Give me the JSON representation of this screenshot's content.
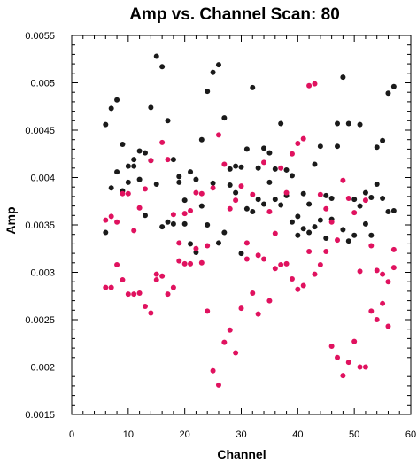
{
  "chart_data": {
    "type": "scatter",
    "title": "Amp vs. Channel Scan: 80",
    "xlabel": "Channel",
    "ylabel": "Amp",
    "xlim": [
      0,
      60
    ],
    "ylim": [
      0.0015,
      0.0055
    ],
    "x_ticks": [
      "0",
      "10",
      "20",
      "30",
      "40",
      "50",
      "60"
    ],
    "y_ticks": [
      "0.0015",
      "0.002",
      "0.0025",
      "0.003",
      "0.0035",
      "0.004",
      "0.0045",
      "0.005",
      "0.0055"
    ],
    "grid": false,
    "series": [
      {
        "color": "#1a1a1a",
        "points": [
          [
            6,
            0.00456
          ],
          [
            6,
            0.00342
          ],
          [
            7,
            0.00473
          ],
          [
            7,
            0.00389
          ],
          [
            8,
            0.00482
          ],
          [
            8,
            0.00406
          ],
          [
            9,
            0.00435
          ],
          [
            9,
            0.00386
          ],
          [
            10,
            0.00412
          ],
          [
            10,
            0.00395
          ],
          [
            11,
            0.00419
          ],
          [
            11,
            0.00412
          ],
          [
            12,
            0.00428
          ],
          [
            12,
            0.00398
          ],
          [
            13,
            0.00426
          ],
          [
            13,
            0.0036
          ],
          [
            14,
            0.00474
          ],
          [
            14,
            0.00418
          ],
          [
            15,
            0.00528
          ],
          [
            15,
            0.00393
          ],
          [
            16,
            0.00517
          ],
          [
            16,
            0.00348
          ],
          [
            17,
            0.0046
          ],
          [
            17,
            0.00353
          ],
          [
            18,
            0.00419
          ],
          [
            18,
            0.00351
          ],
          [
            19,
            0.00401
          ],
          [
            19,
            0.00395
          ],
          [
            20,
            0.00376
          ],
          [
            20,
            0.00351
          ],
          [
            21,
            0.00406
          ],
          [
            21,
            0.0033
          ],
          [
            22,
            0.00398
          ],
          [
            22,
            0.00321
          ],
          [
            23,
            0.0044
          ],
          [
            23,
            0.0037
          ],
          [
            24,
            0.00491
          ],
          [
            24,
            0.0035
          ],
          [
            25,
            0.00511
          ],
          [
            25,
            0.00394
          ],
          [
            26,
            0.00519
          ],
          [
            26,
            0.00331
          ],
          [
            27,
            0.00463
          ],
          [
            27,
            0.00342
          ],
          [
            28,
            0.00409
          ],
          [
            28,
            0.00392
          ],
          [
            29,
            0.00412
          ],
          [
            29,
            0.00384
          ],
          [
            30,
            0.00411
          ],
          [
            30,
            0.0032
          ],
          [
            31,
            0.0043
          ],
          [
            31,
            0.00367
          ],
          [
            32,
            0.00495
          ],
          [
            32,
            0.00364
          ],
          [
            33,
            0.0041
          ],
          [
            33,
            0.00377
          ],
          [
            34,
            0.00431
          ],
          [
            34,
            0.00372
          ],
          [
            35,
            0.00426
          ],
          [
            35,
            0.00395
          ],
          [
            36,
            0.00409
          ],
          [
            36,
            0.00377
          ],
          [
            37,
            0.00457
          ],
          [
            37,
            0.00371
          ],
          [
            38,
            0.00408
          ],
          [
            38,
            0.00381
          ],
          [
            39,
            0.00402
          ],
          [
            39,
            0.00353
          ],
          [
            40,
            0.00359
          ],
          [
            40,
            0.00339
          ],
          [
            41,
            0.00383
          ],
          [
            41,
            0.00346
          ],
          [
            42,
            0.00372
          ],
          [
            42,
            0.00342
          ],
          [
            43,
            0.00414
          ],
          [
            43,
            0.00348
          ],
          [
            44,
            0.00433
          ],
          [
            44,
            0.00355
          ],
          [
            45,
            0.00381
          ],
          [
            45,
            0.00336
          ],
          [
            46,
            0.00378
          ],
          [
            46,
            0.00356
          ],
          [
            47,
            0.00457
          ],
          [
            47,
            0.00433
          ],
          [
            48,
            0.00506
          ],
          [
            48,
            0.00345
          ],
          [
            49,
            0.00457
          ],
          [
            49,
            0.00333
          ],
          [
            50,
            0.00377
          ],
          [
            50,
            0.00339
          ],
          [
            51,
            0.00456
          ],
          [
            51,
            0.0037
          ],
          [
            52,
            0.00384
          ],
          [
            52,
            0.00351
          ],
          [
            53,
            0.00379
          ],
          [
            53,
            0.00339
          ],
          [
            54,
            0.00432
          ],
          [
            54,
            0.00393
          ],
          [
            55,
            0.00439
          ],
          [
            55,
            0.00378
          ],
          [
            56,
            0.00489
          ],
          [
            56,
            0.00364
          ],
          [
            57,
            0.00496
          ],
          [
            57,
            0.00365
          ]
        ]
      },
      {
        "color": "#e0125f",
        "points": [
          [
            6,
            0.00355
          ],
          [
            6,
            0.00284
          ],
          [
            7,
            0.00359
          ],
          [
            7,
            0.00284
          ],
          [
            8,
            0.00353
          ],
          [
            8,
            0.00308
          ],
          [
            9,
            0.00383
          ],
          [
            9,
            0.00292
          ],
          [
            10,
            0.00383
          ],
          [
            10,
            0.00277
          ],
          [
            11,
            0.00344
          ],
          [
            11,
            0.00277
          ],
          [
            12,
            0.00368
          ],
          [
            12,
            0.00278
          ],
          [
            13,
            0.00388
          ],
          [
            13,
            0.00264
          ],
          [
            14,
            0.00418
          ],
          [
            14,
            0.00257
          ],
          [
            15,
            0.00298
          ],
          [
            15,
            0.00292
          ],
          [
            16,
            0.00437
          ],
          [
            16,
            0.00296
          ],
          [
            17,
            0.00419
          ],
          [
            17,
            0.00277
          ],
          [
            18,
            0.00361
          ],
          [
            18,
            0.00284
          ],
          [
            19,
            0.00331
          ],
          [
            19,
            0.00312
          ],
          [
            20,
            0.00362
          ],
          [
            20,
            0.00309
          ],
          [
            21,
            0.00365
          ],
          [
            21,
            0.00309
          ],
          [
            22,
            0.00384
          ],
          [
            22,
            0.00325
          ],
          [
            23,
            0.00383
          ],
          [
            23,
            0.0031
          ],
          [
            24,
            0.00259
          ],
          [
            24,
            0.00328
          ],
          [
            25,
            0.00196
          ],
          [
            25,
            0.00389
          ],
          [
            26,
            0.00445
          ],
          [
            26,
            0.00181
          ],
          [
            27,
            0.00414
          ],
          [
            27,
            0.00226
          ],
          [
            28,
            0.00367
          ],
          [
            28,
            0.00239
          ],
          [
            29,
            0.00376
          ],
          [
            29,
            0.00215
          ],
          [
            30,
            0.00391
          ],
          [
            30,
            0.00262
          ],
          [
            31,
            0.00331
          ],
          [
            31,
            0.00314
          ],
          [
            32,
            0.00382
          ],
          [
            32,
            0.00278
          ],
          [
            33,
            0.00318
          ],
          [
            33,
            0.00256
          ],
          [
            34,
            0.00416
          ],
          [
            34,
            0.00314
          ],
          [
            35,
            0.00364
          ],
          [
            35,
            0.0027
          ],
          [
            36,
            0.00341
          ],
          [
            36,
            0.00304
          ],
          [
            37,
            0.0041
          ],
          [
            37,
            0.00308
          ],
          [
            38,
            0.00309
          ],
          [
            38,
            0.00384
          ],
          [
            39,
            0.00425
          ],
          [
            39,
            0.00293
          ],
          [
            40,
            0.00436
          ],
          [
            40,
            0.00282
          ],
          [
            41,
            0.00441
          ],
          [
            41,
            0.00286
          ],
          [
            42,
            0.00497
          ],
          [
            42,
            0.00322
          ],
          [
            43,
            0.00499
          ],
          [
            43,
            0.00298
          ],
          [
            44,
            0.00382
          ],
          [
            44,
            0.00308
          ],
          [
            45,
            0.00367
          ],
          [
            45,
            0.00322
          ],
          [
            46,
            0.00353
          ],
          [
            46,
            0.00222
          ],
          [
            47,
            0.00334
          ],
          [
            47,
            0.0021
          ],
          [
            48,
            0.00397
          ],
          [
            48,
            0.00191
          ],
          [
            49,
            0.00378
          ],
          [
            49,
            0.00205
          ],
          [
            50,
            0.00363
          ],
          [
            50,
            0.00227
          ],
          [
            51,
            0.00301
          ],
          [
            51,
            0.002
          ],
          [
            52,
            0.00376
          ],
          [
            52,
            0.002
          ],
          [
            53,
            0.00328
          ],
          [
            53,
            0.00259
          ],
          [
            54,
            0.00302
          ],
          [
            54,
            0.0025
          ],
          [
            55,
            0.00298
          ],
          [
            55,
            0.00267
          ],
          [
            56,
            0.0029
          ],
          [
            56,
            0.00243
          ],
          [
            57,
            0.00324
          ],
          [
            57,
            0.00305
          ]
        ]
      }
    ]
  }
}
